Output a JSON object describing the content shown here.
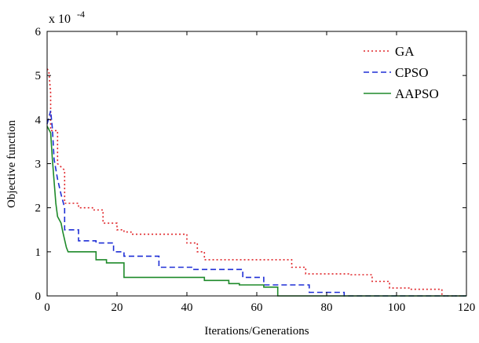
{
  "chart_data": {
    "type": "line",
    "title": "",
    "xlabel": "Iterations/Generations",
    "ylabel": "Objective function",
    "xlim": [
      0,
      120
    ],
    "ylim": [
      0,
      6
    ],
    "y_scale_multiplier": "x 10",
    "y_scale_exponent": "-4",
    "x_ticks": [
      "0",
      "20",
      "40",
      "60",
      "80",
      "100",
      "120"
    ],
    "y_ticks": [
      "0",
      "1",
      "2",
      "3",
      "4",
      "5",
      "6"
    ],
    "grid": false,
    "legend_position": "top-right",
    "series": [
      {
        "name": "GA",
        "color": "#e0262a",
        "dash": "2,3",
        "x": [
          0,
          0.5,
          1,
          1,
          3,
          3,
          5,
          5,
          9,
          9,
          13,
          13,
          16,
          16,
          20,
          20,
          22,
          22,
          24,
          24,
          26,
          26,
          40,
          40,
          43,
          43,
          45,
          45,
          70,
          70,
          74,
          74,
          87,
          87,
          93,
          93,
          98,
          98,
          104,
          104,
          113,
          113,
          120
        ],
        "y": [
          5.15,
          5.1,
          4.6,
          3.75,
          3.75,
          3.0,
          2.85,
          2.1,
          2.1,
          2.0,
          2.0,
          1.95,
          1.95,
          1.65,
          1.65,
          1.5,
          1.5,
          1.45,
          1.45,
          1.4,
          1.4,
          1.4,
          1.4,
          1.2,
          1.2,
          1.0,
          1.0,
          0.82,
          0.82,
          0.65,
          0.65,
          0.5,
          0.5,
          0.48,
          0.48,
          0.33,
          0.33,
          0.18,
          0.18,
          0.15,
          0.15,
          0.0,
          0.0
        ]
      },
      {
        "name": "CPSO",
        "color": "#1f2fd6",
        "dash": "7,4",
        "x": [
          0,
          1,
          1.5,
          2,
          3,
          4,
          5,
          5,
          9,
          9,
          14,
          14,
          19,
          19,
          22,
          22,
          32,
          32,
          42,
          42,
          56,
          56,
          62,
          62,
          75,
          75,
          85,
          85,
          120
        ],
        "y": [
          3.9,
          4.2,
          3.8,
          3.1,
          2.65,
          2.3,
          2.0,
          1.5,
          1.5,
          1.25,
          1.25,
          1.2,
          1.2,
          1.0,
          1.0,
          0.9,
          0.9,
          0.65,
          0.65,
          0.6,
          0.6,
          0.42,
          0.42,
          0.25,
          0.25,
          0.08,
          0.08,
          0.0,
          0.0
        ]
      },
      {
        "name": "AAPSO",
        "color": "#1e8a2a",
        "dash": "",
        "x": [
          0,
          1,
          1.5,
          2.5,
          3,
          4,
          4.5,
          5.5,
          6,
          14,
          14,
          17,
          17,
          22,
          22,
          45,
          45,
          52,
          52,
          55,
          55,
          62,
          62,
          66,
          66,
          120
        ],
        "y": [
          3.85,
          3.7,
          3.1,
          2.1,
          1.8,
          1.65,
          1.45,
          1.1,
          1.0,
          1.0,
          0.82,
          0.82,
          0.75,
          0.75,
          0.42,
          0.42,
          0.35,
          0.35,
          0.28,
          0.28,
          0.25,
          0.25,
          0.2,
          0.2,
          0.0,
          0.0
        ]
      }
    ]
  }
}
